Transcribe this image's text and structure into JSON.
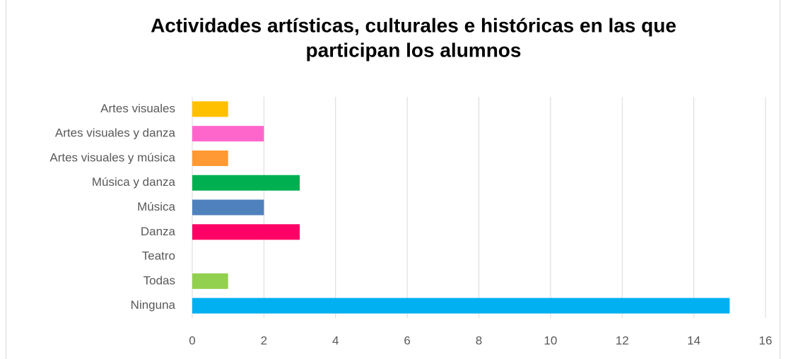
{
  "chart_data": {
    "type": "bar",
    "orientation": "horizontal",
    "title": [
      "Actividades artísticas, culturales e históricas en las que",
      "participan los alumnos"
    ],
    "categories": [
      "Artes visuales",
      "Artes visuales y danza",
      "Artes visuales y música",
      "Música y danza",
      "Música",
      "Danza",
      "Teatro",
      "Todas",
      "Ninguna"
    ],
    "values": [
      1,
      2,
      1,
      3,
      2,
      3,
      0,
      1,
      15
    ],
    "colors": [
      "#ffc000",
      "#ff66cc",
      "#ff9933",
      "#00b050",
      "#4f81bd",
      "#ff0066",
      "#a6a6a6",
      "#92d050",
      "#00b0f0"
    ],
    "xlim": [
      0,
      16
    ],
    "xticks": [
      0,
      2,
      4,
      6,
      8,
      10,
      12,
      14,
      16
    ],
    "grid": true
  }
}
